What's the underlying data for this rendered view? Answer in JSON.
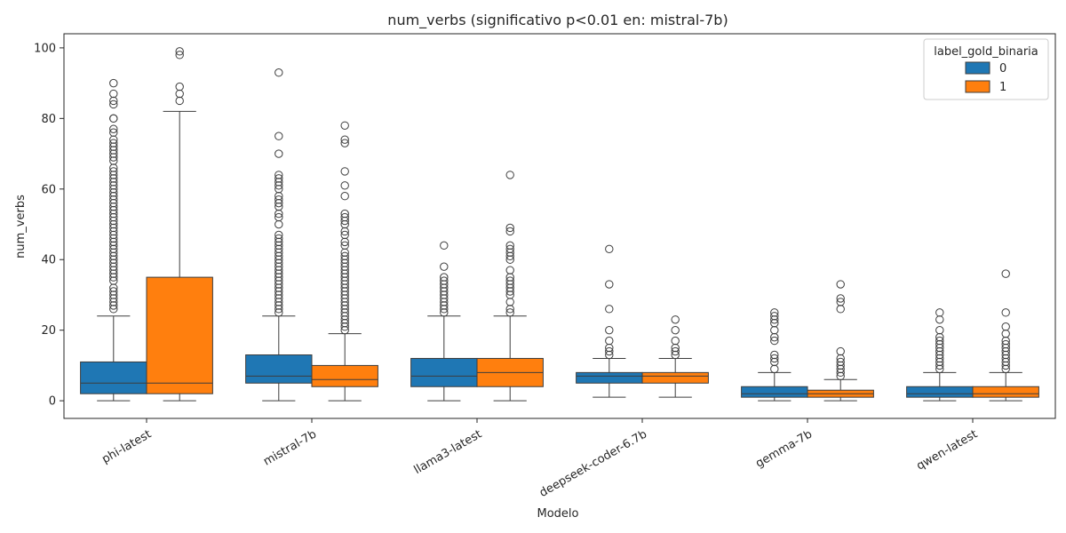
{
  "chart_data": {
    "type": "box",
    "title": "num_verbs (significativo p<0.01 en: mistral-7b)",
    "xlabel": "Modelo",
    "ylabel": "num_verbs",
    "ylim": [
      -5,
      104
    ],
    "yticks": [
      0,
      20,
      40,
      60,
      80,
      100
    ],
    "categories": [
      "phi-latest",
      "mistral-7b",
      "llama3-latest",
      "deepseek-coder-6.7b",
      "gemma-7b",
      "qwen-latest"
    ],
    "legend": {
      "title": "label_gold_binaria",
      "position": "top-right"
    },
    "series": [
      {
        "name": "0",
        "color": "#1f77b4",
        "boxes": [
          {
            "whislo": 0,
            "q1": 2,
            "med": 5,
            "q3": 11,
            "whishi": 24,
            "fliers": [
              26,
              27,
              28,
              29,
              30,
              31,
              32,
              34,
              35,
              36,
              37,
              38,
              39,
              40,
              41,
              42,
              43,
              44,
              45,
              46,
              47,
              48,
              49,
              50,
              51,
              52,
              53,
              54,
              55,
              56,
              57,
              58,
              59,
              60,
              61,
              62,
              63,
              64,
              65,
              66,
              68,
              69,
              70,
              71,
              72,
              73,
              74,
              76,
              77,
              80,
              80,
              84,
              85,
              87,
              90
            ]
          },
          {
            "whislo": 0,
            "q1": 5,
            "med": 7,
            "q3": 13,
            "whishi": 24,
            "fliers": [
              25,
              26,
              27,
              28,
              29,
              30,
              31,
              32,
              33,
              34,
              35,
              36,
              37,
              38,
              39,
              40,
              41,
              42,
              43,
              44,
              45,
              46,
              47,
              50,
              52,
              53,
              55,
              56,
              57,
              58,
              60,
              61,
              62,
              63,
              64,
              70,
              75,
              93
            ]
          },
          {
            "whislo": 0,
            "q1": 4,
            "med": 7,
            "q3": 12,
            "whishi": 24,
            "fliers": [
              25,
              26,
              27,
              28,
              29,
              30,
              31,
              32,
              33,
              34,
              35,
              38,
              44
            ]
          },
          {
            "whislo": 1,
            "q1": 5,
            "med": 7,
            "q3": 8,
            "whishi": 12,
            "fliers": [
              13,
              14,
              15,
              17,
              20,
              26,
              33,
              43
            ]
          },
          {
            "whislo": 0,
            "q1": 1,
            "med": 2,
            "q3": 4,
            "whishi": 8,
            "fliers": [
              9,
              11,
              12,
              13,
              17,
              18,
              20,
              22,
              23,
              24,
              25
            ]
          },
          {
            "whislo": 0,
            "q1": 1,
            "med": 2,
            "q3": 4,
            "whishi": 8,
            "fliers": [
              9,
              10,
              11,
              12,
              13,
              14,
              15,
              16,
              17,
              18,
              20,
              23,
              25
            ]
          }
        ]
      },
      {
        "name": "1",
        "color": "#ff7f0e",
        "boxes": [
          {
            "whislo": 0,
            "q1": 2,
            "med": 5,
            "q3": 35,
            "whishi": 82,
            "fliers": [
              85,
              87,
              89,
              98,
              99
            ]
          },
          {
            "whislo": 0,
            "q1": 4,
            "med": 6,
            "q3": 10,
            "whishi": 19,
            "fliers": [
              20,
              21,
              22,
              23,
              24,
              25,
              26,
              27,
              28,
              29,
              30,
              31,
              32,
              33,
              34,
              35,
              36,
              37,
              38,
              39,
              40,
              41,
              42,
              44,
              45,
              47,
              48,
              50,
              51,
              52,
              53,
              58,
              61,
              65,
              73,
              74,
              78
            ]
          },
          {
            "whislo": 0,
            "q1": 4,
            "med": 8,
            "q3": 12,
            "whishi": 24,
            "fliers": [
              25,
              26,
              28,
              30,
              31,
              32,
              33,
              34,
              35,
              37,
              40,
              41,
              42,
              43,
              44,
              48,
              49,
              64
            ]
          },
          {
            "whislo": 1,
            "q1": 5,
            "med": 7,
            "q3": 8,
            "whishi": 12,
            "fliers": [
              13,
              14,
              15,
              17,
              20,
              23
            ]
          },
          {
            "whislo": 0,
            "q1": 1,
            "med": 2,
            "q3": 3,
            "whishi": 6,
            "fliers": [
              7,
              8,
              9,
              10,
              11,
              12,
              14,
              26,
              28,
              29,
              33
            ]
          },
          {
            "whislo": 0,
            "q1": 1,
            "med": 2,
            "q3": 4,
            "whishi": 8,
            "fliers": [
              9,
              10,
              11,
              12,
              13,
              14,
              15,
              16,
              17,
              19,
              21,
              25,
              36
            ]
          }
        ]
      }
    ]
  }
}
